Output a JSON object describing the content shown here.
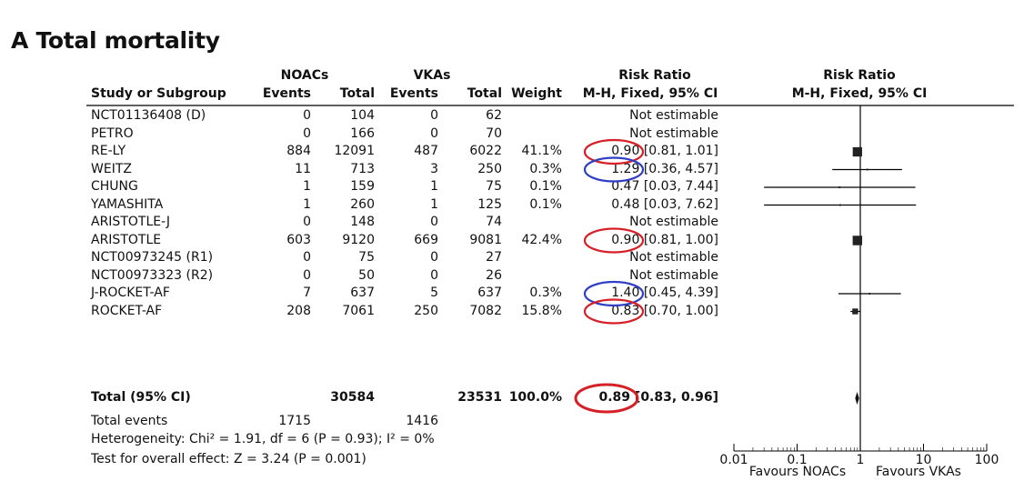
{
  "figure_title": "A Total mortality",
  "headers": {
    "group1": "NOACs",
    "group2": "VKAs",
    "rr_left": "Risk Ratio",
    "rr_right": "Risk Ratio",
    "study": "Study or Subgroup",
    "events1": "Events",
    "total1": "Total",
    "events2": "Events",
    "total2": "Total",
    "weight": "Weight",
    "method_left": "M-H, Fixed, 95% CI",
    "method_right": "M-H, Fixed, 95% CI"
  },
  "studies": [
    {
      "name": "NCT01136408 (D)",
      "e1": "0",
      "t1": "104",
      "e2": "0",
      "t2": "62",
      "weight": "",
      "ci_text": "Not estimable"
    },
    {
      "name": "PETRO",
      "e1": "0",
      "t1": "166",
      "e2": "0",
      "t2": "70",
      "weight": "",
      "ci_text": "Not estimable"
    },
    {
      "name": "RE-LY",
      "e1": "884",
      "t1": "12091",
      "e2": "487",
      "t2": "6022",
      "weight": "41.1%",
      "ci_text": "0.90 [0.81, 1.01]"
    },
    {
      "name": "WEITZ",
      "e1": "11",
      "t1": "713",
      "e2": "3",
      "t2": "250",
      "weight": "0.3%",
      "ci_text": "1.29 [0.36, 4.57]"
    },
    {
      "name": "CHUNG",
      "e1": "1",
      "t1": "159",
      "e2": "1",
      "t2": "75",
      "weight": "0.1%",
      "ci_text": "0.47 [0.03, 7.44]"
    },
    {
      "name": "YAMASHITA",
      "e1": "1",
      "t1": "260",
      "e2": "1",
      "t2": "125",
      "weight": "0.1%",
      "ci_text": "0.48 [0.03, 7.62]"
    },
    {
      "name": "ARISTOTLE-J",
      "e1": "0",
      "t1": "148",
      "e2": "0",
      "t2": "74",
      "weight": "",
      "ci_text": "Not estimable"
    },
    {
      "name": "ARISTOTLE",
      "e1": "603",
      "t1": "9120",
      "e2": "669",
      "t2": "9081",
      "weight": "42.4%",
      "ci_text": "0.90 [0.81, 1.00]"
    },
    {
      "name": "NCT00973245 (R1)",
      "e1": "0",
      "t1": "75",
      "e2": "0",
      "t2": "27",
      "weight": "",
      "ci_text": "Not estimable"
    },
    {
      "name": "NCT00973323 (R2)",
      "e1": "0",
      "t1": "50",
      "e2": "0",
      "t2": "26",
      "weight": "",
      "ci_text": "Not estimable"
    },
    {
      "name": "J-ROCKET-AF",
      "e1": "7",
      "t1": "637",
      "e2": "5",
      "t2": "637",
      "weight": "0.3%",
      "ci_text": "1.40 [0.45, 4.39]"
    },
    {
      "name": "ROCKET-AF",
      "e1": "208",
      "t1": "7061",
      "e2": "250",
      "t2": "7082",
      "weight": "15.8%",
      "ci_text": "0.83 [0.70, 1.00]"
    }
  ],
  "total": {
    "name": "Total (95% CI)",
    "t1": "30584",
    "t2": "23531",
    "weight": "100.0%",
    "ci_text": "0.89 [0.83, 0.96]"
  },
  "total_events": {
    "label": "Total events",
    "e1": "1715",
    "e2": "1416"
  },
  "heterogeneity": "Heterogeneity: Chi² = 1.91, df = 6 (P = 0.93); I² = 0%",
  "overall_effect": "Test for overall effect: Z = 3.24 (P = 0.001)",
  "axis": {
    "ticks": [
      "0.01",
      "0.1",
      "1",
      "10",
      "100"
    ],
    "favours_left": "Favours NOACs",
    "favours_right": "Favours VKAs"
  },
  "highlight_colors": {
    "red": "#d61f26",
    "blue": "#2f3fc4"
  },
  "chart_data": {
    "type": "forest",
    "title": "A Total mortality",
    "xscale": "log",
    "xlim": [
      0.01,
      100
    ],
    "reference_line": 1,
    "studies": [
      {
        "name": "RE-LY",
        "rr": 0.9,
        "lo": 0.81,
        "hi": 1.01,
        "weight": 41.1,
        "circle": "red"
      },
      {
        "name": "WEITZ",
        "rr": 1.29,
        "lo": 0.36,
        "hi": 4.57,
        "weight": 0.3,
        "circle": "blue"
      },
      {
        "name": "CHUNG",
        "rr": 0.47,
        "lo": 0.03,
        "hi": 7.44,
        "weight": 0.1,
        "circle": ""
      },
      {
        "name": "YAMASHITA",
        "rr": 0.48,
        "lo": 0.03,
        "hi": 7.62,
        "weight": 0.1,
        "circle": ""
      },
      {
        "name": "ARISTOTLE",
        "rr": 0.9,
        "lo": 0.81,
        "hi": 1.0,
        "weight": 42.4,
        "circle": "red"
      },
      {
        "name": "J-ROCKET-AF",
        "rr": 1.4,
        "lo": 0.45,
        "hi": 4.39,
        "weight": 0.3,
        "circle": "blue"
      },
      {
        "name": "ROCKET-AF",
        "rr": 0.83,
        "lo": 0.7,
        "hi": 1.0,
        "weight": 15.8,
        "circle": "red"
      }
    ],
    "total": {
      "rr": 0.89,
      "lo": 0.83,
      "hi": 0.96,
      "circle": "red"
    }
  }
}
